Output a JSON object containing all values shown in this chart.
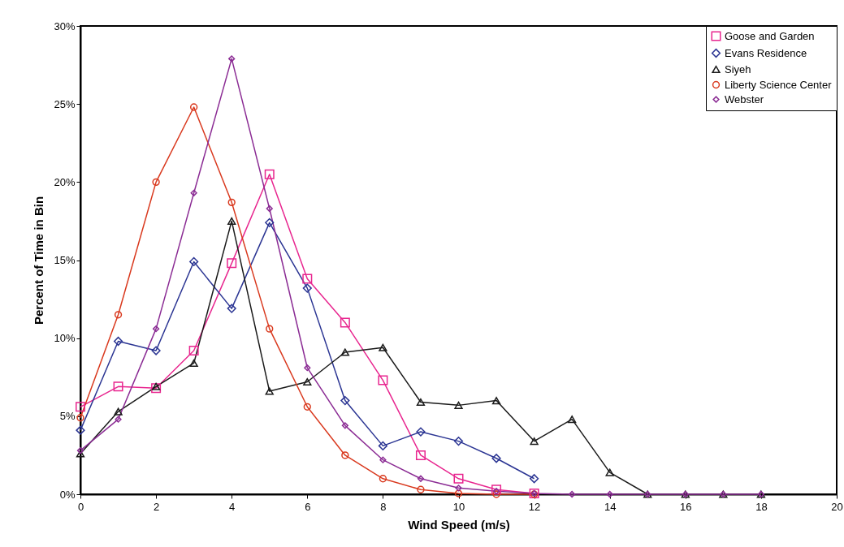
{
  "chart_data": {
    "type": "line",
    "xlabel": "Wind Speed (m/s)",
    "ylabel": "Percent of Time in Bin",
    "x": [
      0,
      1,
      2,
      3,
      4,
      5,
      6,
      7,
      8,
      9,
      10,
      11,
      12,
      13,
      14,
      15,
      16,
      17,
      18
    ],
    "series": [
      {
        "name": "Goose and Garden",
        "color": "#e8268f",
        "marker": "square",
        "values": [
          5.6,
          6.9,
          6.8,
          9.2,
          14.8,
          20.5,
          13.8,
          11.0,
          7.3,
          2.5,
          1.0,
          0.3,
          0.05,
          null,
          null,
          null,
          null,
          null,
          null
        ]
      },
      {
        "name": "Evans Residence",
        "color": "#2b3593",
        "marker": "diamond",
        "values": [
          4.1,
          9.8,
          9.2,
          14.9,
          11.9,
          17.4,
          13.2,
          6.0,
          3.1,
          4.0,
          3.4,
          2.3,
          1.0,
          null,
          null,
          null,
          null,
          null,
          null
        ]
      },
      {
        "name": "Siyeh",
        "color": "#1a1a1a",
        "marker": "triangle",
        "values": [
          2.6,
          5.3,
          6.9,
          8.4,
          17.5,
          6.6,
          7.2,
          9.1,
          9.4,
          5.9,
          5.7,
          6.0,
          3.4,
          4.8,
          1.4,
          0,
          0,
          0,
          0
        ]
      },
      {
        "name": "Liberty Science Center",
        "color": "#d9391e",
        "marker": "circle",
        "values": [
          4.9,
          11.5,
          20.0,
          24.8,
          18.7,
          10.6,
          5.6,
          2.5,
          1.0,
          0.3,
          0.05,
          0,
          0,
          null,
          null,
          null,
          null,
          null,
          null
        ]
      },
      {
        "name": "Webster",
        "color": "#8b2c94",
        "marker": "diamond",
        "values": [
          2.8,
          4.8,
          10.6,
          19.3,
          27.9,
          18.3,
          8.1,
          4.4,
          2.2,
          1.0,
          0.4,
          0.2,
          0.05,
          0,
          0,
          0,
          0,
          0,
          0
        ]
      }
    ],
    "xlim": [
      0,
      20
    ],
    "xticks": [
      0,
      2,
      4,
      6,
      8,
      10,
      12,
      14,
      16,
      18,
      20
    ],
    "ylim": [
      0,
      30
    ],
    "yticks": [
      {
        "value": 0,
        "label": "0%"
      },
      {
        "value": 5,
        "label": "5%"
      },
      {
        "value": 10,
        "label": "10%"
      },
      {
        "value": 15,
        "label": "15%"
      },
      {
        "value": 20,
        "label": "20%"
      },
      {
        "value": 25,
        "label": "25%"
      },
      {
        "value": 30,
        "label": "30%"
      }
    ],
    "grid": false,
    "legend": "top right",
    "line_style": "solid"
  }
}
